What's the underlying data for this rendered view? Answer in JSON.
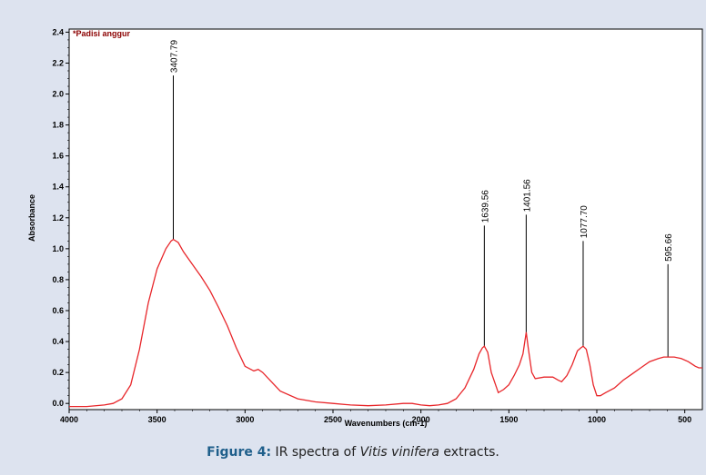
{
  "chart_data": {
    "type": "line",
    "sample_label": "*Padisi anggur",
    "xlabel": "Wavenumbers (cm-1)",
    "ylabel": "Absorbance",
    "xlim": [
      4000,
      400
    ],
    "ylim": [
      -0.04,
      2.42
    ],
    "x_ticks": [
      4000,
      3500,
      3000,
      2500,
      2000,
      1500,
      1000,
      500
    ],
    "y_ticks": [
      0.0,
      0.2,
      0.4,
      0.6,
      0.8,
      1.0,
      1.2,
      1.4,
      1.6,
      1.8,
      2.0,
      2.2,
      2.4
    ],
    "y_tick_labels": [
      "0.0",
      "0.2",
      "0.4",
      "0.6",
      "0.8",
      "1.0",
      "1.2",
      "1.4",
      "1.6",
      "1.8",
      "2.0",
      "2.2",
      "2.4"
    ],
    "line_color": "#e8262a",
    "series": [
      {
        "x": [
          4000,
          3900,
          3800,
          3750,
          3700,
          3650,
          3600,
          3550,
          3500,
          3450,
          3420,
          3407.79,
          3380,
          3350,
          3300,
          3250,
          3200,
          3150,
          3100,
          3050,
          3000,
          2950,
          2925,
          2900,
          2850,
          2800,
          2700,
          2600,
          2500,
          2400,
          2300,
          2200,
          2100,
          2050,
          2000,
          1950,
          1900,
          1850,
          1800,
          1750,
          1700,
          1670,
          1650,
          1639.56,
          1620,
          1600,
          1560,
          1530,
          1500,
          1470,
          1440,
          1420,
          1401.56,
          1390,
          1370,
          1350,
          1300,
          1250,
          1220,
          1200,
          1170,
          1140,
          1110,
          1090,
          1077.7,
          1060,
          1040,
          1020,
          1000,
          980,
          950,
          900,
          850,
          800,
          750,
          700,
          650,
          620,
          595.66,
          560,
          520,
          480,
          440,
          420,
          400
        ],
        "y": [
          -0.02,
          -0.02,
          -0.01,
          0.0,
          0.03,
          0.12,
          0.35,
          0.65,
          0.87,
          1.0,
          1.05,
          1.06,
          1.04,
          0.98,
          0.9,
          0.82,
          0.73,
          0.62,
          0.5,
          0.36,
          0.24,
          0.21,
          0.22,
          0.2,
          0.14,
          0.08,
          0.03,
          0.01,
          0.0,
          -0.01,
          -0.015,
          -0.01,
          0.0,
          0.0,
          -0.01,
          -0.015,
          -0.01,
          0.0,
          0.03,
          0.1,
          0.22,
          0.32,
          0.36,
          0.37,
          0.33,
          0.2,
          0.07,
          0.09,
          0.12,
          0.18,
          0.25,
          0.32,
          0.46,
          0.36,
          0.2,
          0.16,
          0.17,
          0.17,
          0.15,
          0.14,
          0.18,
          0.25,
          0.34,
          0.36,
          0.37,
          0.35,
          0.25,
          0.12,
          0.05,
          0.05,
          0.07,
          0.1,
          0.15,
          0.19,
          0.23,
          0.27,
          0.29,
          0.3,
          0.3,
          0.3,
          0.29,
          0.27,
          0.24,
          0.23,
          0.23
        ]
      }
    ],
    "peaks": [
      {
        "x": 3407.79,
        "label": "3407.79",
        "y_peak": 1.06,
        "y_top": 2.12
      },
      {
        "x": 1639.56,
        "label": "1639.56",
        "y_peak": 0.37,
        "y_top": 1.15
      },
      {
        "x": 1401.56,
        "label": "1401.56",
        "y_peak": 0.46,
        "y_top": 1.22
      },
      {
        "x": 1077.7,
        "label": "1077.70",
        "y_peak": 0.37,
        "y_top": 1.05
      },
      {
        "x": 595.66,
        "label": "595.66",
        "y_peak": 0.3,
        "y_top": 0.9
      }
    ]
  },
  "caption": {
    "figure_label": "Figure 4:",
    "text_before": " IR spectra of ",
    "italic": "Vitis vinifera",
    "text_after": " extracts."
  }
}
